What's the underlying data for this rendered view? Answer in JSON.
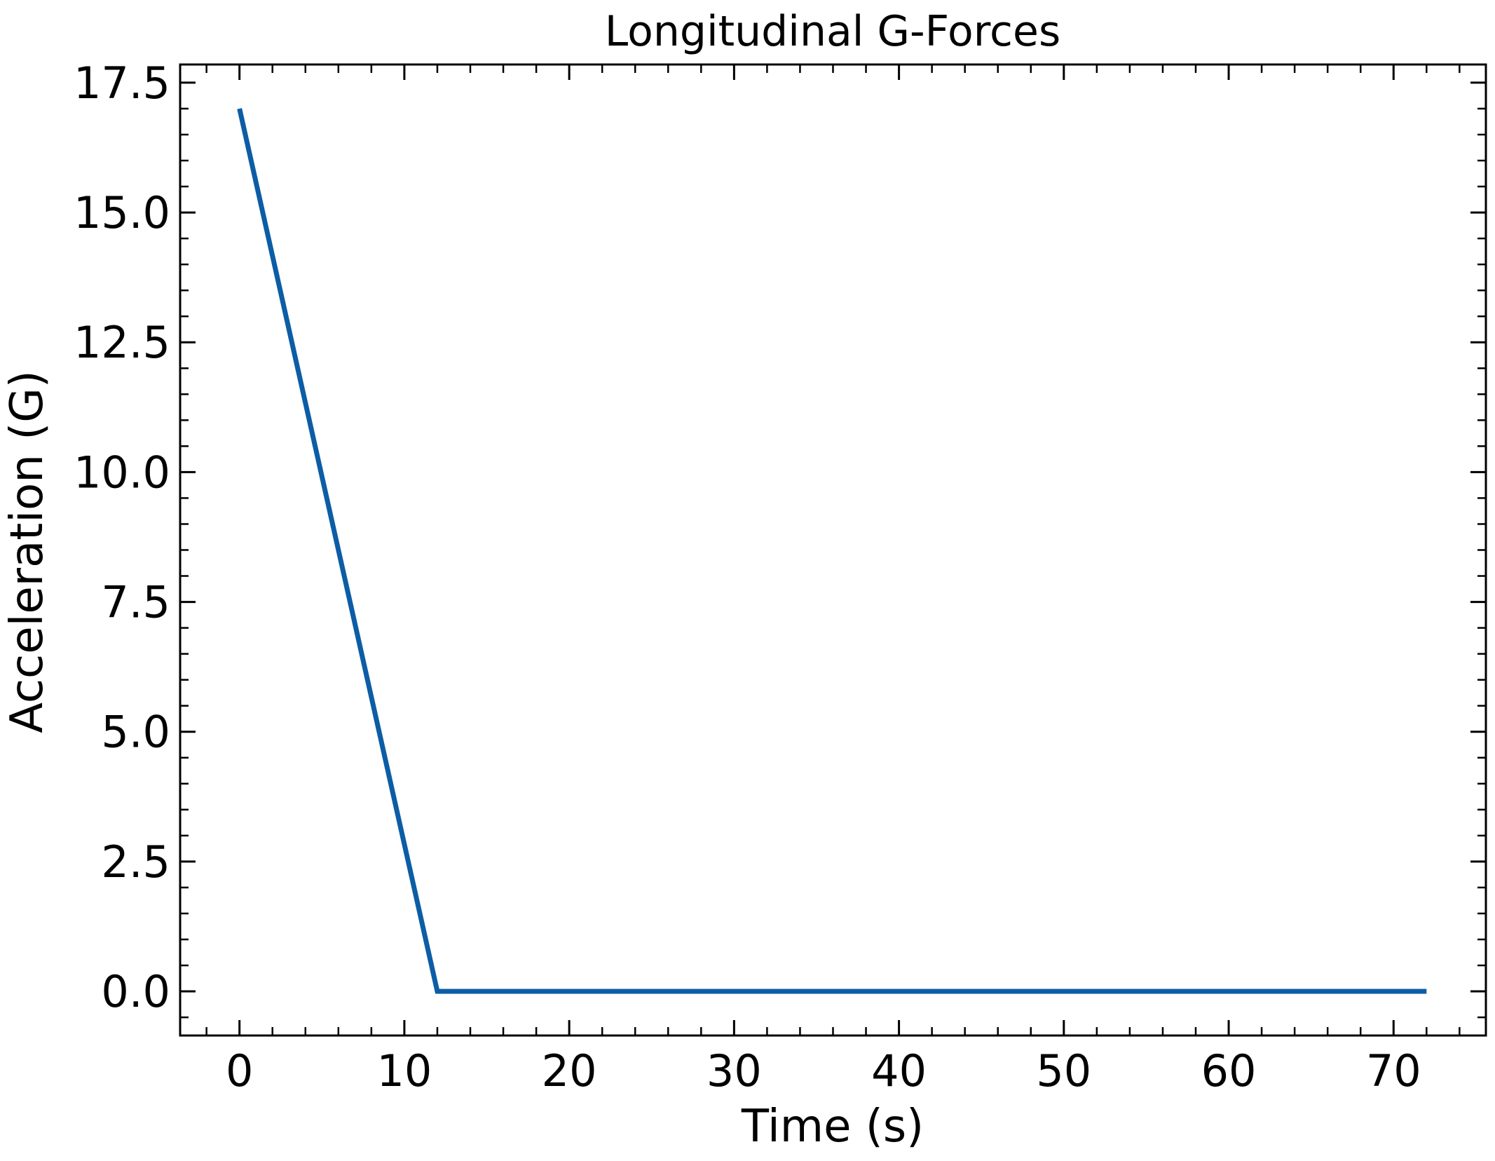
{
  "chart_data": {
    "type": "line",
    "title": "Longitudinal G-Forces",
    "xlabel": "Time (s)",
    "ylabel": "Acceleration (G)",
    "xlim": [
      -3.6,
      75.6
    ],
    "ylim": [
      -0.85,
      17.85
    ],
    "x_ticks": [
      0,
      10,
      20,
      30,
      40,
      50,
      60,
      70
    ],
    "x_tick_labels": [
      "0",
      "10",
      "20",
      "30",
      "40",
      "50",
      "60",
      "70"
    ],
    "y_ticks": [
      0.0,
      2.5,
      5.0,
      7.5,
      10.0,
      12.5,
      15.0,
      17.5
    ],
    "y_tick_labels": [
      "0.0",
      "2.5",
      "5.0",
      "7.5",
      "10.0",
      "12.5",
      "15.0",
      "17.5"
    ],
    "x_minor_step": 2,
    "y_minor_step": 0.5,
    "grid": false,
    "series": [
      {
        "color": "#0c5da5",
        "x": [
          0,
          12,
          72
        ],
        "y": [
          17.0,
          0.0,
          0.0
        ]
      }
    ]
  }
}
